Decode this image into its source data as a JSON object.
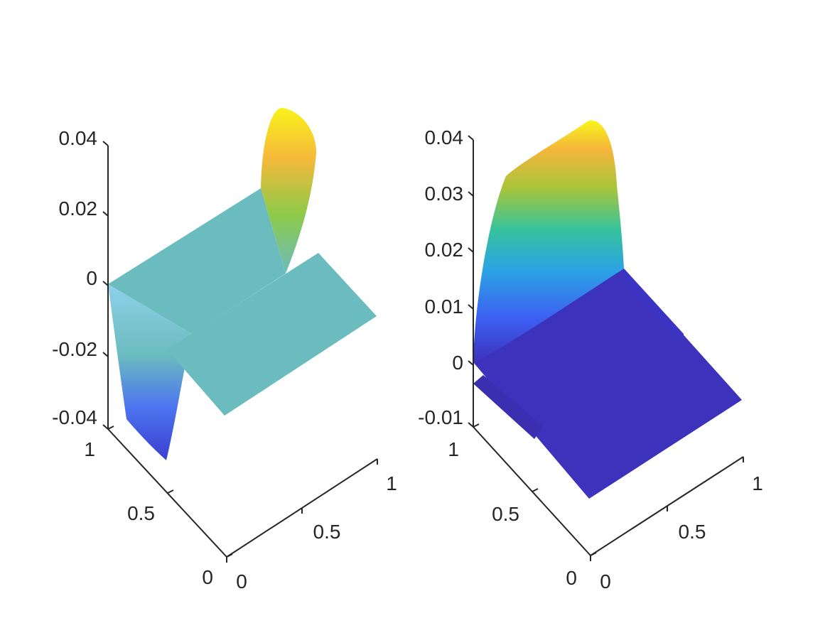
{
  "chart_data": [
    {
      "type": "surface",
      "title": "",
      "xlabel": "",
      "ylabel": "",
      "zlabel": "",
      "xlim": [
        0,
        1
      ],
      "ylim": [
        0,
        1
      ],
      "zlim": [
        -0.04,
        0.04
      ],
      "x_ticks": [
        "0",
        "0.5",
        "1"
      ],
      "y_ticks": [
        "0",
        "0.5",
        "1"
      ],
      "z_ticks": [
        "-0.04",
        "-0.02",
        "0",
        "0.02",
        "0.04"
      ],
      "grid": false,
      "colormap": "parula",
      "plateau_value": 0,
      "features": [
        {
          "region": "y near 1, x near 0",
          "extreme_value": -0.04
        },
        {
          "region": "x near 1, y near 1",
          "extreme_value": 0.04
        }
      ]
    },
    {
      "type": "surface",
      "title": "",
      "xlabel": "",
      "ylabel": "",
      "zlabel": "",
      "xlim": [
        0,
        1
      ],
      "ylim": [
        0,
        1
      ],
      "zlim": [
        -0.01,
        0.04
      ],
      "x_ticks": [
        "0",
        "0.5",
        "1"
      ],
      "y_ticks": [
        "0",
        "0.5",
        "1"
      ],
      "z_ticks": [
        "-0.01",
        "0",
        "0.01",
        "0.02",
        "0.03",
        "0.04"
      ],
      "grid": false,
      "colormap": "parula",
      "plateau_value": -0.01,
      "features": [
        {
          "region": "y near 1",
          "extreme_value": 0.04
        }
      ]
    }
  ],
  "colors": {
    "flat_plane_left": "#6bbcbe",
    "flat_plane_right": "#3c32bc",
    "axis": "#262626"
  }
}
